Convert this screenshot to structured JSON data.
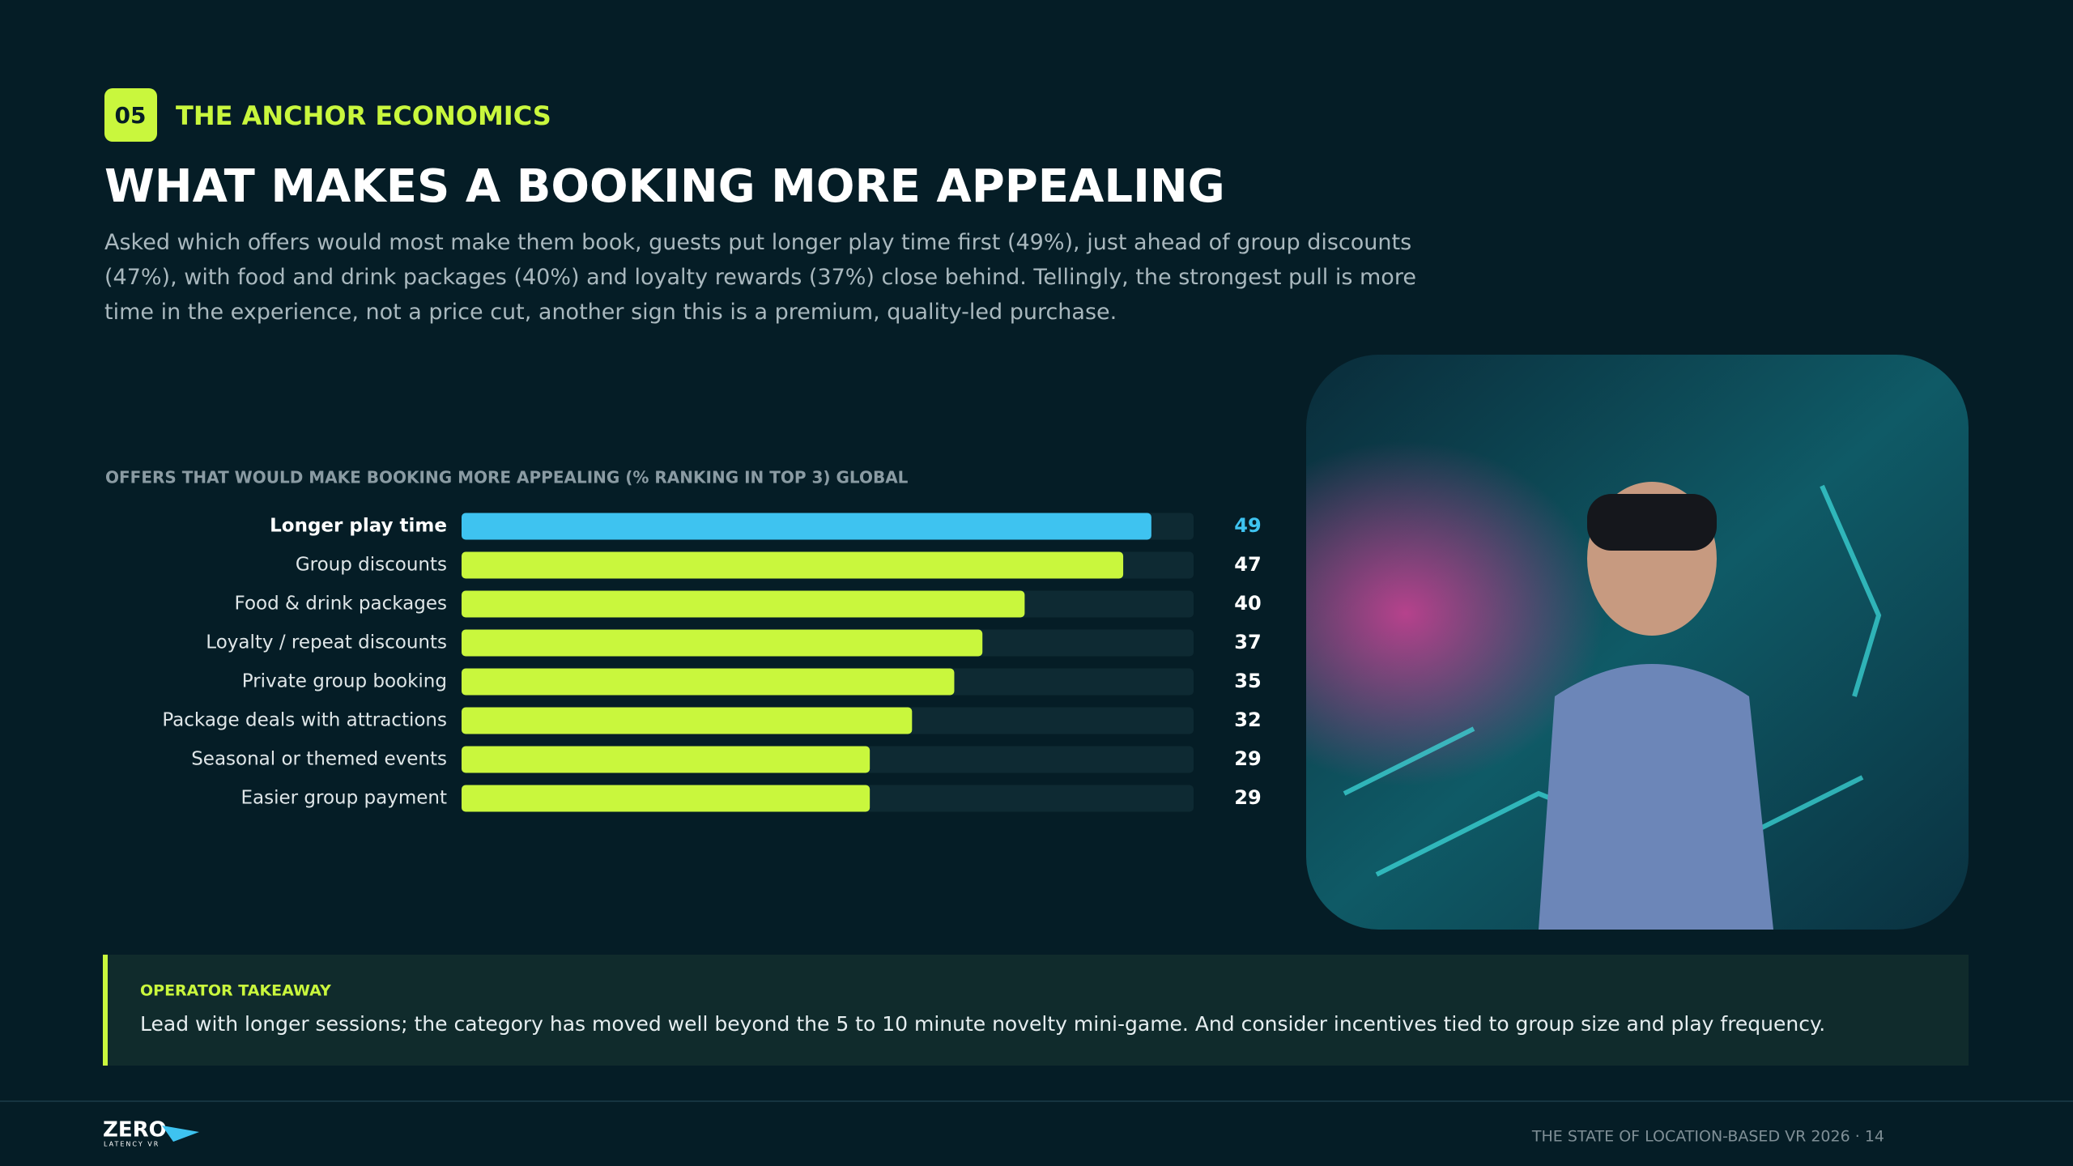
{
  "header": {
    "badge": "05",
    "section": "THE ANCHOR ECONOMICS",
    "title": "WHAT MAKES A BOOKING MORE APPEALING",
    "intro": "Asked which offers would most make them book, guests put longer play time first (49%), just ahead of group discounts (47%), with food and drink packages (40%) and loyalty rewards (37%) close behind. Tellingly, the strongest pull is more time in the experience, not a price cut, another sign this is a premium, quality-led purchase."
  },
  "chart_data": {
    "type": "bar",
    "orientation": "horizontal",
    "title": "OFFERS THAT WOULD MAKE BOOKING MORE APPEALING (% RANKING IN TOP 3) GLOBAL",
    "categories": [
      "Longer play time",
      "Group discounts",
      "Food & drink packages",
      "Loyalty / repeat discounts",
      "Private group booking",
      "Package deals with attractions",
      "Seasonal or themed events",
      "Easier group payment"
    ],
    "values": [
      49,
      47,
      40,
      37,
      35,
      32,
      29,
      29
    ],
    "colors": [
      "#3ec3f0",
      "#c9f73d",
      "#c9f73d",
      "#c9f73d",
      "#c9f73d",
      "#c9f73d",
      "#c9f73d",
      "#c9f73d"
    ],
    "xlim": [
      0,
      52
    ]
  },
  "takeaway": {
    "label": "OPERATOR TAKEAWAY",
    "text": "Lead with longer sessions; the category has moved well beyond the 5 to 10 minute novelty mini-game. And consider incentives tied to group size and play frequency."
  },
  "footer": {
    "logo": "ZERO",
    "logo_sub": "LATENCY VR",
    "text": "THE STATE OF LOCATION-BASED VR 2026 · 14"
  }
}
